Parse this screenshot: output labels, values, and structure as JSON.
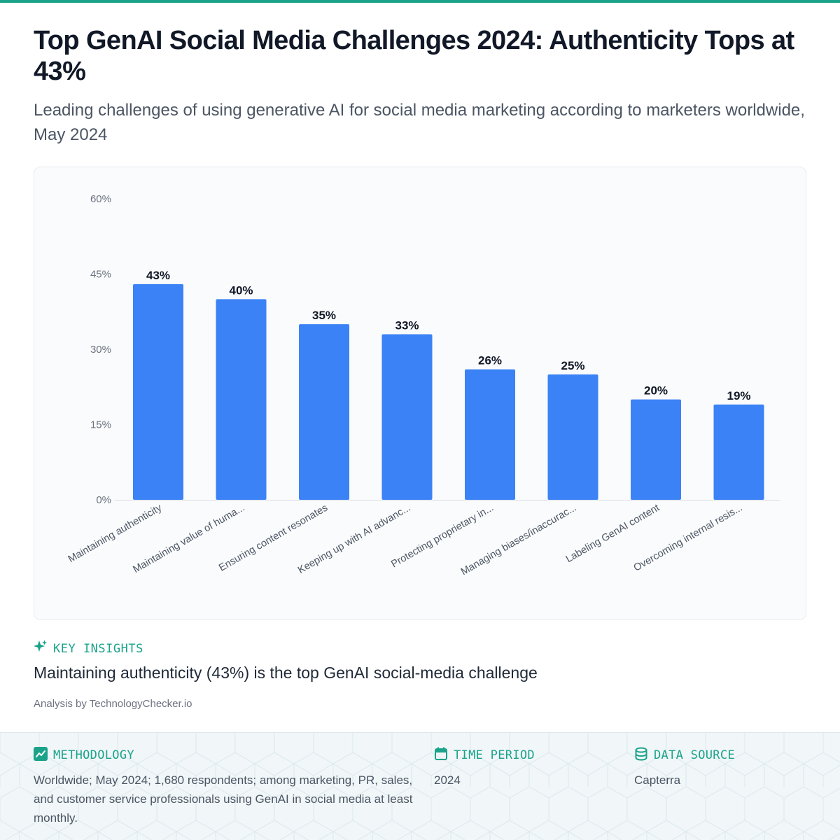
{
  "header": {
    "title": "Top GenAI Social Media Challenges 2024: Authenticity Tops at 43%",
    "subtitle": "Leading challenges of using generative AI for social media marketing according to marketers worldwide, May 2024"
  },
  "chart_data": {
    "type": "bar",
    "categories": [
      "Maintaining authenticity",
      "Maintaining value of huma...",
      "Ensuring content resonates",
      "Keeping up with AI advanc...",
      "Protecting proprietary in...",
      "Managing biases/inaccurac...",
      "Labeling GenAI content",
      "Overcoming internal resis..."
    ],
    "values": [
      43,
      40,
      35,
      33,
      26,
      25,
      20,
      19
    ],
    "data_labels": [
      "43%",
      "40%",
      "35%",
      "33%",
      "26%",
      "25%",
      "20%",
      "19%"
    ],
    "y_ticks": [
      0,
      15,
      30,
      45,
      60
    ],
    "y_tick_labels": [
      "0%",
      "15%",
      "30%",
      "45%",
      "60%"
    ],
    "ylim": [
      0,
      60
    ],
    "grid": false,
    "bar_color": "#3b82f6"
  },
  "insights": {
    "label": "KEY INSIGHTS",
    "text": "Maintaining authenticity (43%) is the top GenAI social-media challenge",
    "analysis": "Analysis by TechnologyChecker.io"
  },
  "footer": {
    "methodology": {
      "label": "METHODOLOGY",
      "text": "Worldwide; May 2024; 1,680 respondents; among marketing, PR, sales, and customer service professionals using GenAI in social media at least monthly."
    },
    "time_period": {
      "label": "TIME PERIOD",
      "text": "2024"
    },
    "data_source": {
      "label": "DATA SOURCE",
      "text": "Capterra"
    }
  },
  "colors": {
    "accent": "#1aa38a",
    "bar": "#3b82f6",
    "title": "#111827"
  },
  "icons": {
    "insights": "sparkle-icon",
    "methodology": "trend-chart-icon",
    "time_period": "calendar-icon",
    "data_source": "database-icon"
  }
}
